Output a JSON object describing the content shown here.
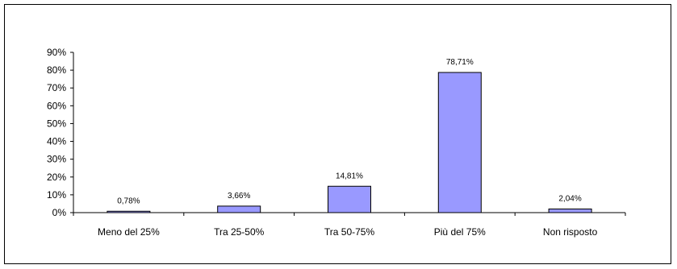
{
  "chart_data": {
    "type": "bar",
    "categories": [
      "Meno del 25%",
      "Tra 25-50%",
      "Tra 50-75%",
      "Più del 75%",
      "Non risposto"
    ],
    "values": [
      0.78,
      3.66,
      14.81,
      78.71,
      2.04
    ],
    "data_labels": [
      "0,78%",
      "3,66%",
      "14,81%",
      "78,71%",
      "2,04%"
    ],
    "y_ticks": [
      {
        "value": 0,
        "label": "0%"
      },
      {
        "value": 10,
        "label": "10%"
      },
      {
        "value": 20,
        "label": "20%"
      },
      {
        "value": 30,
        "label": "30%"
      },
      {
        "value": 40,
        "label": "40%"
      },
      {
        "value": 50,
        "label": "50%"
      },
      {
        "value": 60,
        "label": "60%"
      },
      {
        "value": 70,
        "label": "70%"
      },
      {
        "value": 80,
        "label": "80%"
      },
      {
        "value": 90,
        "label": "90%"
      }
    ],
    "ylim": [
      0,
      90
    ],
    "title": "",
    "xlabel": "",
    "ylabel": "",
    "grid": false,
    "legend": false,
    "bar_color": "#9999ff",
    "bar_border_color": "#000000"
  }
}
